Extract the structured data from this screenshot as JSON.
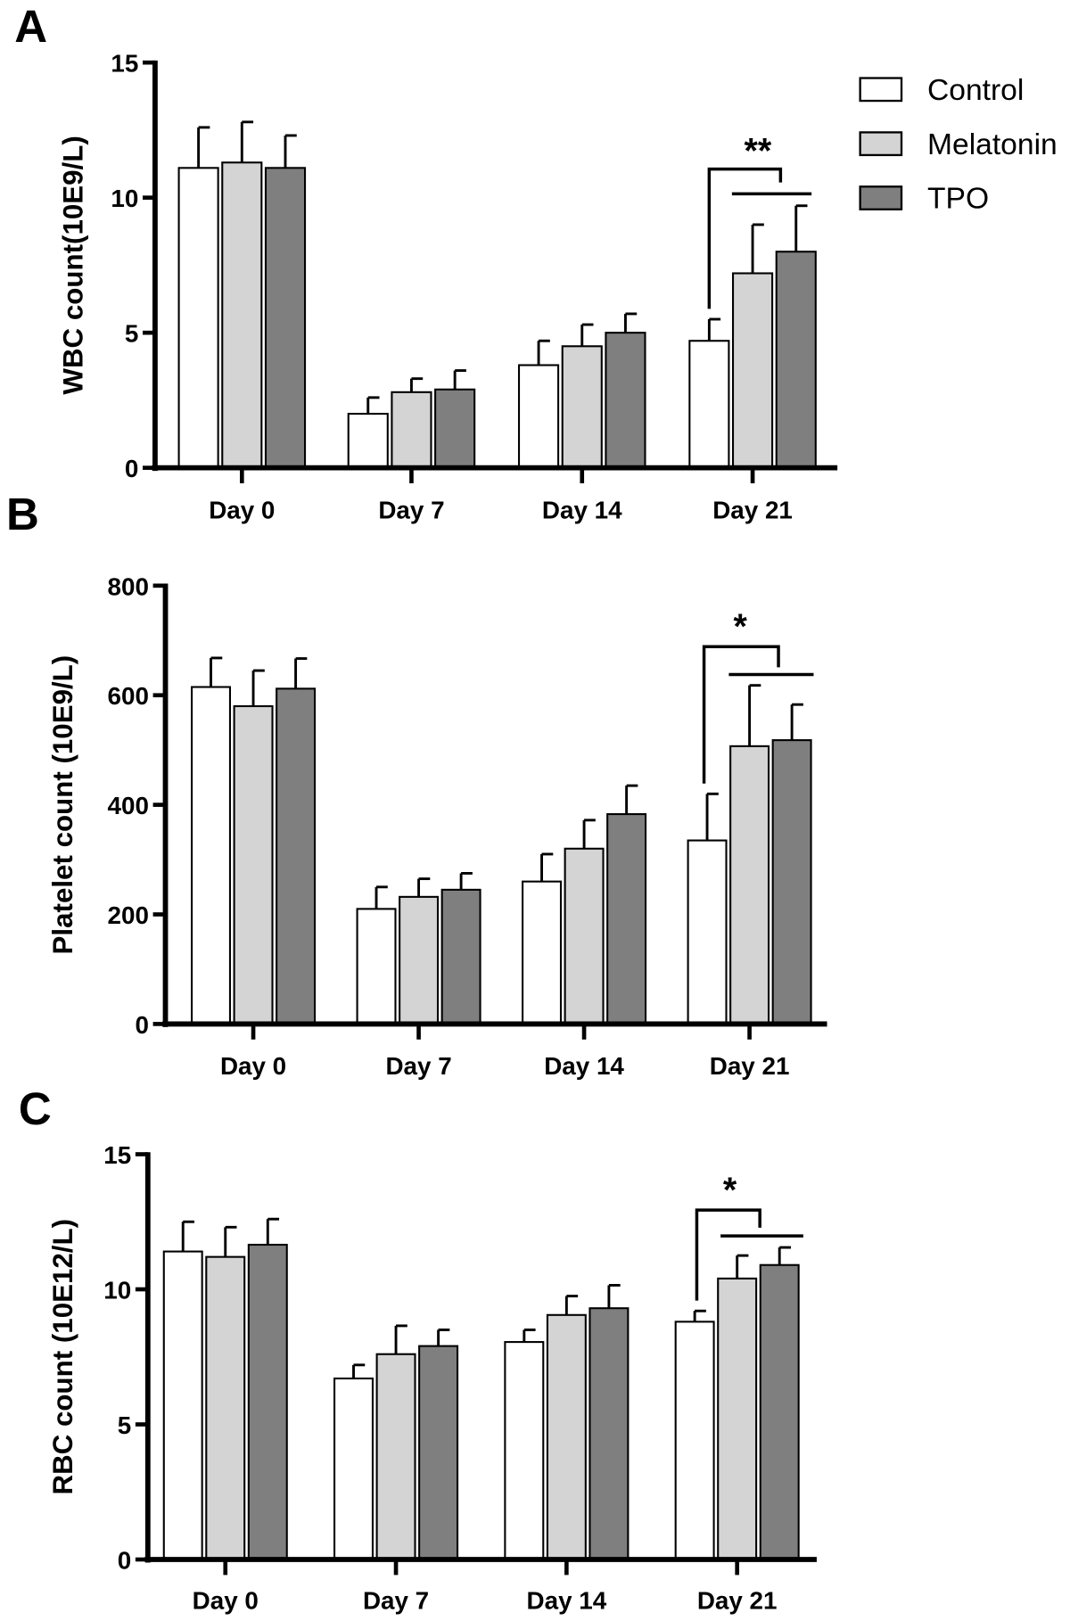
{
  "legend": [
    {
      "name": "Control",
      "color": "#ffffff"
    },
    {
      "name": "Melatonin",
      "color": "#d4d4d4"
    },
    {
      "name": "TPO",
      "color": "#7f7f7f"
    }
  ],
  "chart_data": [
    {
      "panel": "A",
      "type": "bar",
      "ylabel": "WBC count(10E9/L)",
      "ylim": [
        0,
        15
      ],
      "yticks": [
        0,
        5,
        10,
        15
      ],
      "categories": [
        "Day 0",
        "Day 7",
        "Day 14",
        "Day 21"
      ],
      "series": [
        {
          "name": "Control",
          "values": [
            11.1,
            2.0,
            3.8,
            4.7
          ],
          "err_top": [
            12.6,
            2.6,
            4.7,
            5.5
          ]
        },
        {
          "name": "Melatonin",
          "values": [
            11.3,
            2.8,
            4.5,
            7.2
          ],
          "err_top": [
            12.8,
            3.3,
            5.3,
            9.0
          ]
        },
        {
          "name": "TPO",
          "values": [
            11.1,
            2.9,
            5.0,
            8.0
          ],
          "err_top": [
            12.3,
            3.6,
            5.7,
            9.7
          ]
        }
      ],
      "annotation": "**"
    },
    {
      "panel": "B",
      "type": "bar",
      "ylabel": "Platelet count (10E9/L)",
      "ylim": [
        0,
        800
      ],
      "yticks": [
        0,
        200,
        400,
        600,
        800
      ],
      "categories": [
        "Day 0",
        "Day 7",
        "Day 14",
        "Day 21"
      ],
      "series": [
        {
          "name": "Control",
          "values": [
            615,
            210,
            260,
            335
          ],
          "err_top": [
            668,
            250,
            310,
            420
          ]
        },
        {
          "name": "Melatonin",
          "values": [
            580,
            232,
            320,
            507
          ],
          "err_top": [
            645,
            265,
            372,
            618
          ]
        },
        {
          "name": "TPO",
          "values": [
            612,
            245,
            383,
            518
          ],
          "err_top": [
            667,
            275,
            435,
            583
          ]
        }
      ],
      "annotation": "*"
    },
    {
      "panel": "C",
      "type": "bar",
      "ylabel": "RBC count (10E12/L)",
      "ylim": [
        0,
        15
      ],
      "yticks": [
        0,
        5,
        10,
        15
      ],
      "categories": [
        "Day 0",
        "Day 7",
        "Day 14",
        "Day 21"
      ],
      "series": [
        {
          "name": "Control",
          "values": [
            11.4,
            6.7,
            8.05,
            8.8
          ],
          "err_top": [
            12.5,
            7.2,
            8.5,
            9.2
          ]
        },
        {
          "name": "Melatonin",
          "values": [
            11.2,
            7.6,
            9.05,
            10.4
          ],
          "err_top": [
            12.3,
            8.65,
            9.75,
            11.25
          ]
        },
        {
          "name": "TPO",
          "values": [
            11.65,
            7.9,
            9.3,
            10.9
          ],
          "err_top": [
            12.6,
            8.5,
            10.15,
            11.55
          ]
        }
      ],
      "annotation": "*"
    }
  ]
}
